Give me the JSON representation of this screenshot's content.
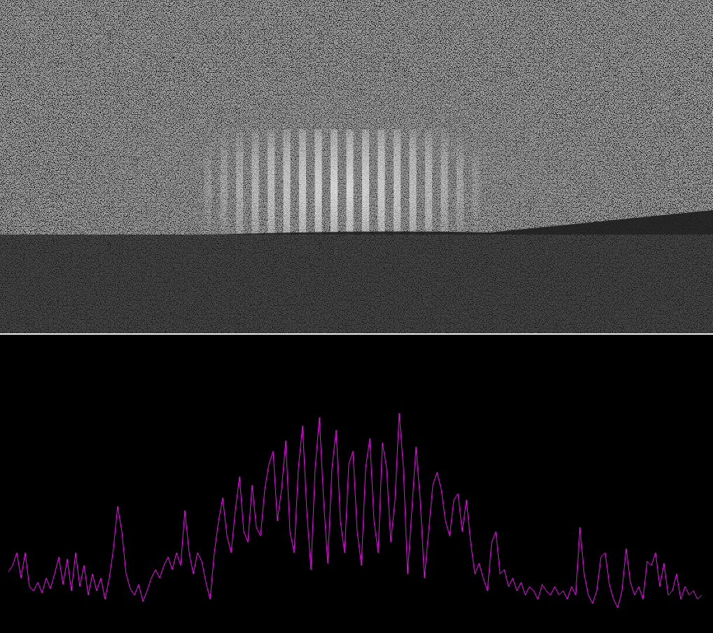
{
  "chart_data": {
    "type": "line",
    "x": [
      0,
      2,
      4,
      6,
      8,
      10,
      12,
      14,
      16,
      18,
      20,
      22,
      24,
      26,
      28,
      30,
      32,
      34,
      36,
      38,
      40,
      42,
      44,
      46,
      48,
      50,
      52,
      54,
      56,
      58,
      60,
      62,
      64,
      66,
      68,
      70,
      72,
      74,
      76,
      78,
      80,
      82,
      84,
      86,
      88,
      90,
      92,
      94,
      96,
      98,
      100,
      102,
      104,
      106,
      108,
      110,
      112,
      114,
      116,
      118,
      120,
      122,
      124,
      126,
      128,
      130,
      132,
      134,
      136,
      138,
      140,
      142,
      144,
      146,
      148,
      150,
      152,
      154,
      156,
      158,
      160,
      162,
      164,
      166,
      168,
      170,
      172,
      174,
      176,
      178,
      180,
      182,
      184,
      186,
      188,
      190,
      192,
      194,
      196,
      198,
      200,
      202,
      204,
      206,
      208,
      210,
      212,
      214,
      216,
      218,
      220,
      222,
      224,
      226,
      228,
      230,
      232,
      234,
      236,
      238,
      240,
      242,
      244,
      246,
      248,
      250,
      252,
      254,
      256,
      258,
      260,
      262,
      264,
      266,
      268,
      270,
      272,
      274,
      276,
      278,
      280,
      282,
      284,
      286,
      288,
      290,
      292,
      294,
      296,
      298,
      300,
      302,
      304,
      306,
      308,
      310,
      312,
      314,
      316,
      318,
      320,
      322,
      324,
      326,
      328,
      330
    ],
    "values": [
      21,
      24,
      30,
      18,
      30,
      14,
      12,
      16,
      11,
      18,
      13,
      20,
      28,
      15,
      27,
      12,
      30,
      14,
      24,
      10,
      20,
      12,
      18,
      8,
      18,
      32,
      52,
      40,
      20,
      13,
      10,
      15,
      7,
      12,
      18,
      22,
      18,
      24,
      28,
      22,
      30,
      24,
      50,
      30,
      20,
      30,
      26,
      16,
      8,
      30,
      45,
      56,
      38,
      30,
      50,
      66,
      40,
      35,
      62,
      42,
      38,
      60,
      72,
      78,
      45,
      60,
      83,
      40,
      30,
      70,
      90,
      50,
      22,
      70,
      94,
      55,
      25,
      70,
      88,
      45,
      30,
      72,
      78,
      40,
      24,
      70,
      84,
      45,
      30,
      82,
      70,
      35,
      55,
      96,
      70,
      20,
      50,
      80,
      55,
      18,
      40,
      62,
      68,
      60,
      45,
      38,
      55,
      58,
      40,
      55,
      35,
      20,
      25,
      18,
      12,
      35,
      40,
      20,
      22,
      14,
      18,
      12,
      16,
      10,
      14,
      12,
      8,
      15,
      12,
      10,
      14,
      10,
      12,
      8,
      14,
      10,
      42,
      20,
      10,
      6,
      12,
      28,
      30,
      15,
      8,
      4,
      12,
      32,
      16,
      10,
      14,
      8,
      26,
      24,
      30,
      14,
      25,
      10,
      12,
      20,
      8,
      14,
      10,
      12,
      8,
      10
    ],
    "xlim": [
      0,
      330
    ],
    "ylim": [
      0,
      100
    ],
    "color": "#ff00ff",
    "line_style": "solid",
    "marker": "none",
    "grid": false,
    "tick_labels": false
  }
}
